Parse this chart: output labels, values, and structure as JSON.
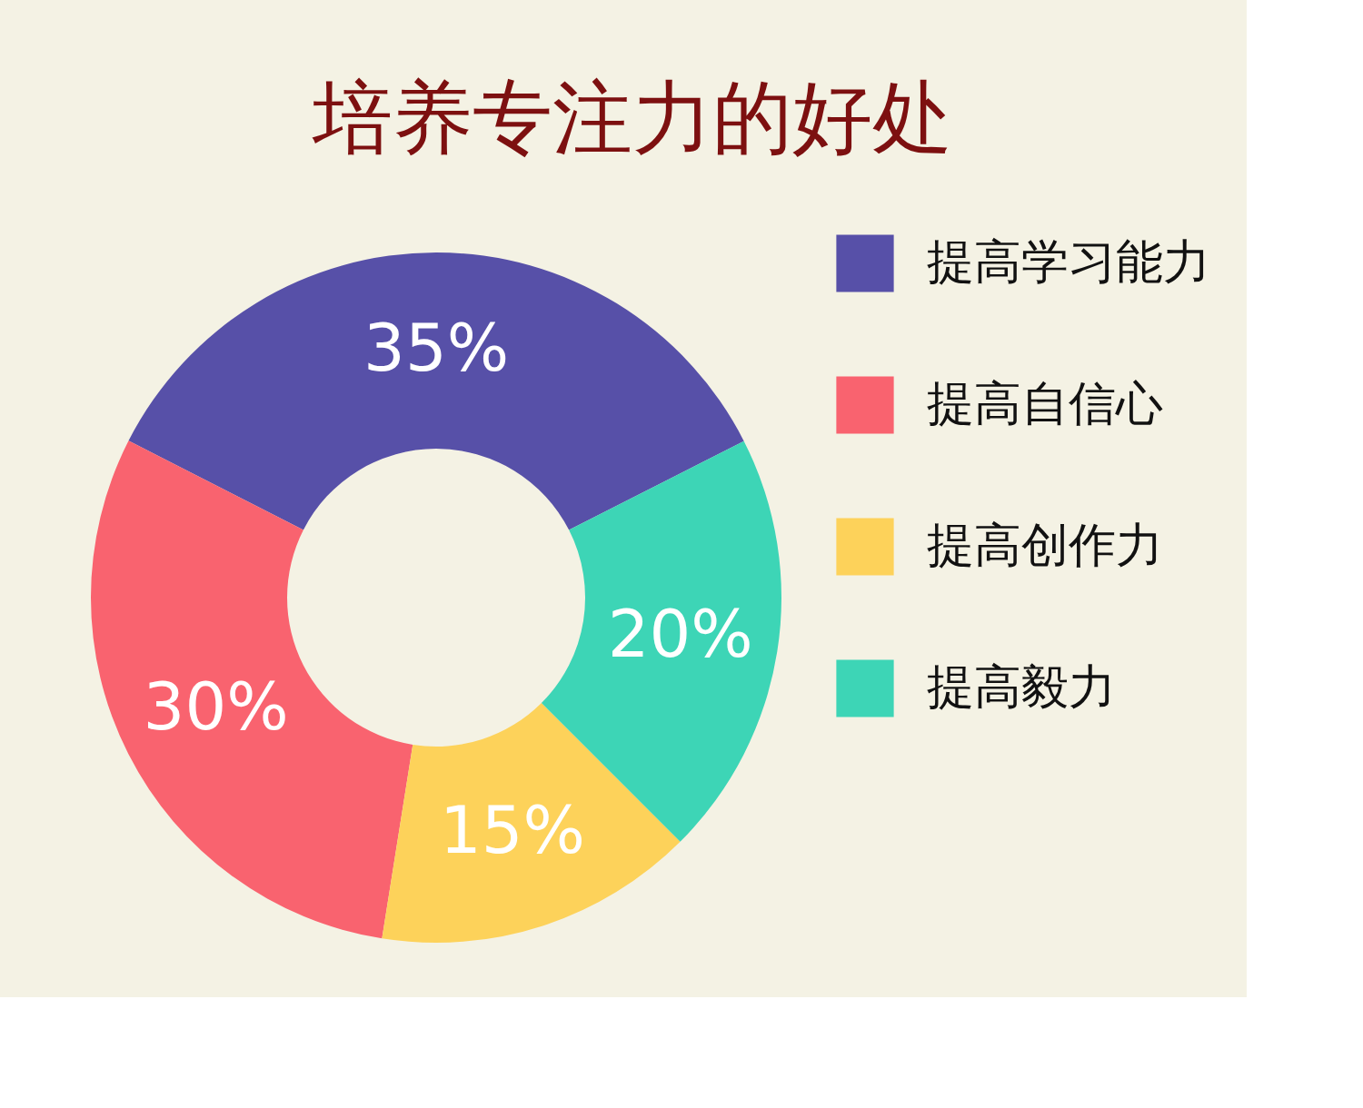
{
  "chart_data": {
    "type": "donut",
    "title": "培养专注力的好处",
    "categories": [
      "提高学习能力",
      "提高自信心",
      "提高创作力",
      "提高毅力"
    ],
    "values": [
      35,
      30,
      15,
      20
    ],
    "colors": [
      "#5750a8",
      "#f9636f",
      "#fdd25a",
      "#3dd5b6"
    ],
    "value_labels": [
      "35%",
      "30%",
      "15%",
      "20%"
    ],
    "legend": "right"
  }
}
